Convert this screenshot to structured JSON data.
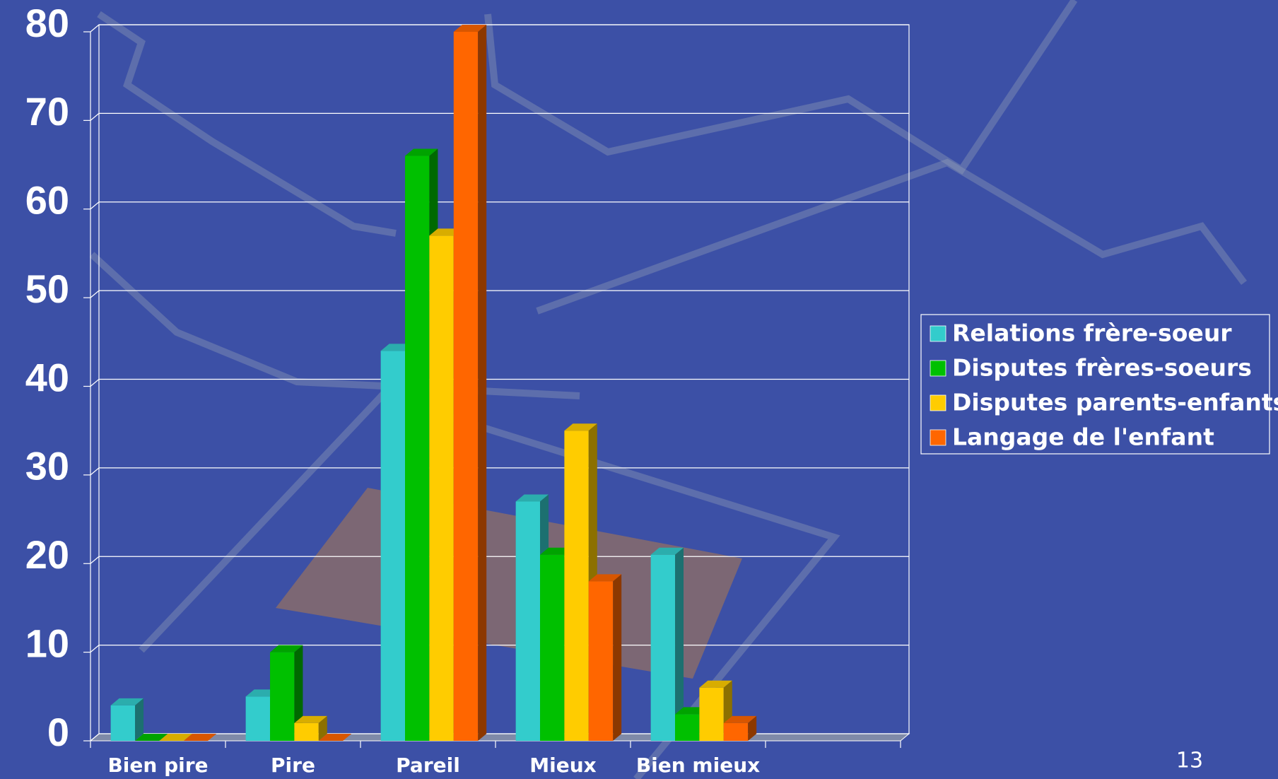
{
  "chart_data": {
    "type": "bar3d",
    "categories": [
      "Bien pire",
      "Pire",
      "Pareil",
      "Mieux",
      "Bien mieux",
      null
    ],
    "series": [
      {
        "name": "Relations frère-soeur",
        "color": "#33cccc",
        "values": [
          4,
          5,
          44,
          27,
          21,
          null
        ]
      },
      {
        "name": "Disputes frères-soeurs",
        "color": "#00c000",
        "values": [
          0,
          10,
          66,
          21,
          3,
          null
        ]
      },
      {
        "name": "Disputes parents-enfants",
        "color": "#ffcc00",
        "values": [
          0,
          2,
          57,
          35,
          6,
          null
        ]
      },
      {
        "name": "Langage de l'enfant",
        "color": "#ff6600",
        "values": [
          0,
          0,
          80,
          18,
          2,
          null
        ]
      }
    ],
    "ylim": [
      0,
      80
    ],
    "yticks": [
      0,
      10,
      20,
      30,
      40,
      50,
      60,
      70,
      80
    ],
    "grid": true,
    "legend": "right"
  },
  "slide_number": "13"
}
